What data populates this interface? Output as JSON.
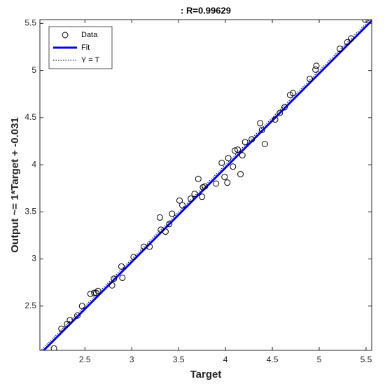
{
  "chart_data": {
    "type": "scatter",
    "title": ": R=0.99629",
    "x_label": "Target",
    "y_label": "Output ~= 1*Target + -0.031",
    "xlim": [
      2.02,
      5.56
    ],
    "ylim": [
      2.03,
      5.54
    ],
    "xticks": [
      2.5,
      3,
      3.5,
      4,
      4.5,
      5,
      5.5
    ],
    "yticks": [
      2.5,
      3,
      3.5,
      4,
      4.5,
      5,
      5.5
    ],
    "grid": false,
    "legend": "top-left",
    "series": [
      {
        "name": "Data",
        "color": "#000000",
        "marker": "circle",
        "x": [
          2.17,
          2.25,
          2.31,
          2.34,
          2.42,
          2.47,
          2.56,
          2.6,
          2.62,
          2.64,
          2.79,
          2.81,
          2.89,
          2.9,
          3.02,
          3.13,
          3.19,
          3.3,
          3.31,
          3.36,
          3.4,
          3.43,
          3.51,
          3.54,
          3.63,
          3.67,
          3.71,
          3.75,
          3.76,
          3.78,
          3.9,
          3.96,
          3.99,
          4.02,
          4.03,
          4.08,
          4.1,
          4.13,
          4.16,
          4.18,
          4.21,
          4.28,
          4.37,
          4.39,
          4.42,
          4.53,
          4.58,
          4.63,
          4.69,
          4.72,
          4.9,
          4.96,
          4.97,
          5.22,
          5.3,
          5.34,
          5.49
        ],
        "values": [
          2.05,
          2.26,
          2.31,
          2.35,
          2.4,
          2.5,
          2.63,
          2.64,
          2.64,
          2.66,
          2.72,
          2.79,
          2.92,
          2.8,
          3.02,
          3.13,
          3.13,
          3.44,
          3.31,
          3.29,
          3.37,
          3.48,
          3.62,
          3.57,
          3.64,
          3.69,
          3.85,
          3.66,
          3.76,
          3.77,
          3.8,
          4.02,
          3.87,
          3.81,
          4.07,
          3.98,
          4.15,
          4.16,
          3.9,
          4.1,
          4.24,
          4.27,
          4.44,
          4.37,
          4.22,
          4.48,
          4.55,
          4.61,
          4.74,
          4.76,
          4.91,
          5.01,
          5.05,
          5.23,
          5.3,
          5.34,
          5.54
        ]
      },
      {
        "name": "Fit",
        "color": "#0000ff",
        "slope": 1,
        "intercept": -0.031
      },
      {
        "name": "Y = T",
        "color": "#000000"
      }
    ]
  }
}
